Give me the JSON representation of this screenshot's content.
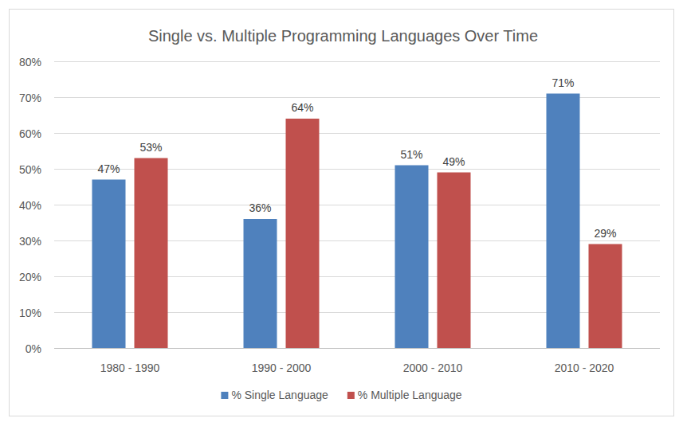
{
  "chart_data": {
    "type": "bar",
    "title": "Single vs. Multiple Programming Languages Over Time",
    "categories": [
      "1980 - 1990",
      "1990 - 2000",
      "2000 - 2010",
      "2010 - 2020"
    ],
    "series": [
      {
        "name": "% Single Language",
        "color": "#4f81bd",
        "values": [
          47,
          36,
          51,
          71
        ],
        "value_labels": [
          "47%",
          "36%",
          "51%",
          "71%"
        ]
      },
      {
        "name": "% Multiple Language",
        "color": "#c0504d",
        "values": [
          53,
          64,
          49,
          29
        ],
        "value_labels": [
          "53%",
          "64%",
          "49%",
          "29%"
        ]
      }
    ],
    "ylim": [
      0,
      80
    ],
    "yticks": [
      {
        "value": 0,
        "label": "0%"
      },
      {
        "value": 10,
        "label": "10%"
      },
      {
        "value": 20,
        "label": "20%"
      },
      {
        "value": 30,
        "label": "30%"
      },
      {
        "value": 40,
        "label": "40%"
      },
      {
        "value": 50,
        "label": "50%"
      },
      {
        "value": 60,
        "label": "60%"
      },
      {
        "value": 70,
        "label": "70%"
      },
      {
        "value": 80,
        "label": "80%"
      }
    ],
    "grid": true,
    "data_labels": true,
    "legend": "bottom"
  }
}
